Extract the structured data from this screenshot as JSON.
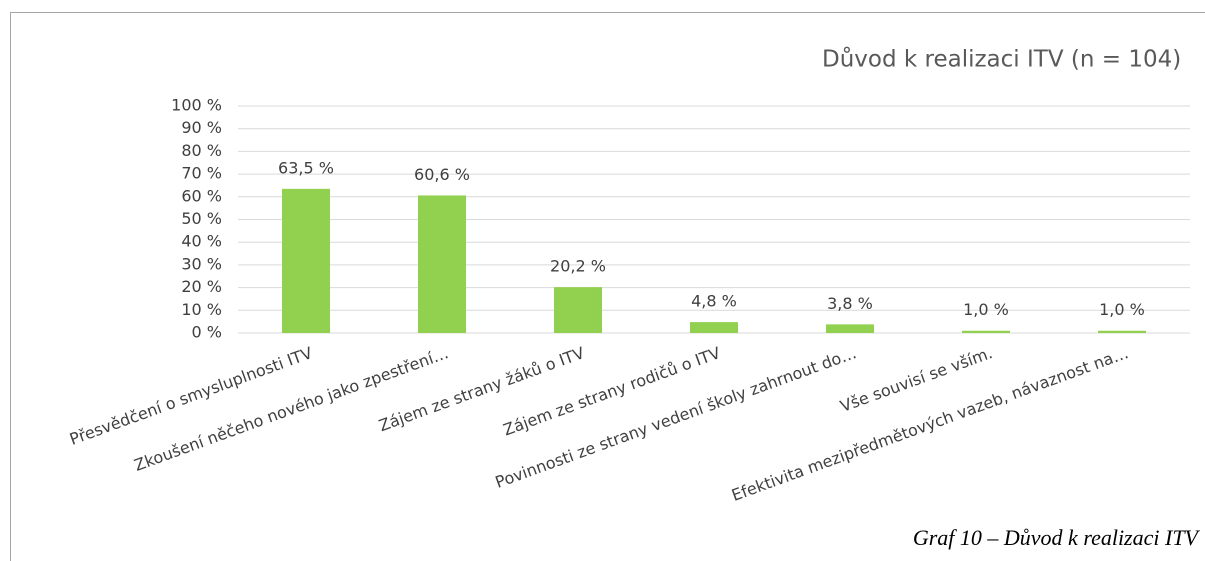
{
  "chart_data": {
    "type": "bar",
    "title": "Důvod k realizaci ITV (n = 104)",
    "caption": "Graf 10 – Důvod k realizaci ITV",
    "categories": [
      "Přesvědčení o smysluplnosti ITV",
      "Zkoušení něčeho nového jako zpestření…",
      "Zájem ze strany žáků o ITV",
      "Zájem ze strany rodičů o ITV",
      "Povinnosti ze strany vedení školy zahrnout do…",
      "Vše souvisí se vším.",
      "Efektivita mezipředmětových vazeb, návaznost na…"
    ],
    "values": [
      63.5,
      60.6,
      20.2,
      4.8,
      3.8,
      1.0,
      1.0
    ],
    "value_labels": [
      "63,5 %",
      "60,6 %",
      "20,2 %",
      "4,8 %",
      "3,8 %",
      "1,0 %",
      "1,0 %"
    ],
    "color": "#92d050",
    "ylim": [
      0,
      100
    ],
    "yticks": [
      {
        "value": 0,
        "label": "0 %"
      },
      {
        "value": 10,
        "label": "10 %"
      },
      {
        "value": 20,
        "label": "20 %"
      },
      {
        "value": 30,
        "label": "30 %"
      },
      {
        "value": 40,
        "label": "40 %"
      },
      {
        "value": 50,
        "label": "50 %"
      },
      {
        "value": 60,
        "label": "60 %"
      },
      {
        "value": 70,
        "label": "70 %"
      },
      {
        "value": 80,
        "label": "80 %"
      },
      {
        "value": 90,
        "label": "90 %"
      },
      {
        "value": 100,
        "label": "100 %"
      }
    ],
    "grid": true
  }
}
